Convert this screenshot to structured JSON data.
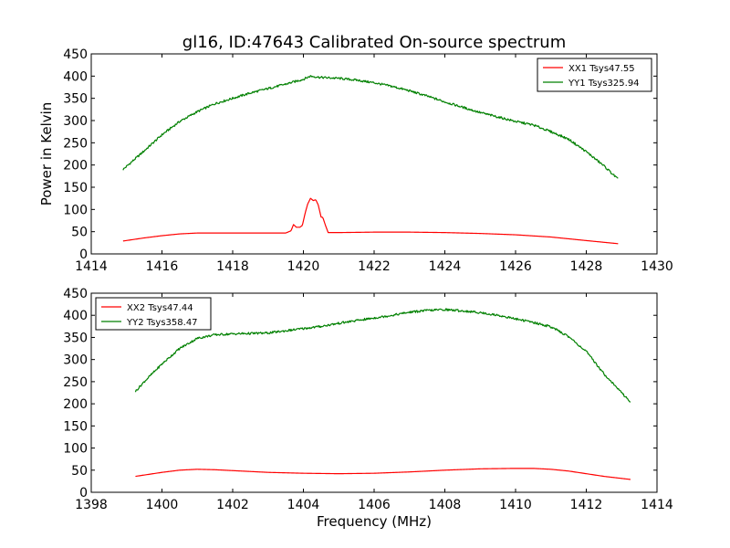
{
  "chart_data": [
    {
      "type": "line",
      "title": "gl16, ID:47643 Calibrated On-source spectrum",
      "xlabel": "",
      "ylabel": "Power in Kelvin",
      "xlim": [
        1414,
        1430
      ],
      "ylim": [
        0,
        450
      ],
      "xticks": [
        "1414",
        "1416",
        "1418",
        "1420",
        "1422",
        "1424",
        "1426",
        "1428",
        "1430"
      ],
      "yticks": [
        "0",
        "50",
        "100",
        "150",
        "200",
        "250",
        "300",
        "350",
        "400",
        "450"
      ],
      "legend_position": "top-right",
      "grid": false,
      "series": [
        {
          "name": "XX1 Tsys47.55",
          "color": "#ff0000",
          "x": [
            1414.9,
            1415.5,
            1416,
            1416.5,
            1417,
            1418,
            1419,
            1419.5,
            1419.65,
            1419.72,
            1419.8,
            1419.9,
            1419.97,
            1420.05,
            1420.12,
            1420.2,
            1420.28,
            1420.35,
            1420.42,
            1420.5,
            1420.55,
            1420.62,
            1420.7,
            1421,
            1422,
            1423,
            1424,
            1425,
            1426,
            1427,
            1428,
            1428.9
          ],
          "y": [
            29,
            36,
            41,
            45,
            47,
            47,
            47,
            47,
            52,
            66,
            60,
            60,
            64,
            92,
            112,
            125,
            120,
            122,
            110,
            83,
            82,
            65,
            48,
            48,
            49,
            49,
            48,
            46,
            43,
            38,
            30,
            23
          ]
        },
        {
          "name": "YY1 Tsys325.94",
          "color": "#008000",
          "x": [
            1414.9,
            1415.5,
            1416,
            1416.5,
            1417,
            1417.5,
            1418,
            1418.5,
            1419,
            1419.5,
            1420,
            1420.2,
            1420.5,
            1421,
            1421.5,
            1422,
            1422.5,
            1423,
            1423.5,
            1424,
            1424.5,
            1425,
            1425.5,
            1426,
            1426.5,
            1427,
            1427.5,
            1428,
            1428.5,
            1428.9
          ],
          "y": [
            190,
            232,
            268,
            298,
            320,
            338,
            350,
            362,
            372,
            382,
            393,
            400,
            397,
            395,
            391,
            385,
            377,
            367,
            355,
            342,
            330,
            318,
            308,
            298,
            290,
            275,
            258,
            230,
            198,
            168
          ]
        }
      ]
    },
    {
      "type": "line",
      "title": "",
      "xlabel": "Frequency (MHz)",
      "ylabel": "",
      "xlim": [
        1398,
        1414
      ],
      "ylim": [
        0,
        450
      ],
      "xticks": [
        "1398",
        "1400",
        "1402",
        "1404",
        "1406",
        "1408",
        "1410",
        "1412",
        "1414"
      ],
      "yticks": [
        "0",
        "50",
        "100",
        "150",
        "200",
        "250",
        "300",
        "350",
        "400",
        "450"
      ],
      "legend_position": "top-left",
      "grid": false,
      "series": [
        {
          "name": "XX2 Tsys47.44",
          "color": "#ff0000",
          "x": [
            1399.25,
            1400,
            1400.5,
            1401,
            1401.5,
            1402,
            1402.5,
            1403,
            1403.5,
            1404,
            1405,
            1406,
            1407,
            1408,
            1409,
            1410,
            1410.5,
            1411,
            1411.5,
            1412,
            1412.5,
            1413.25
          ],
          "y": [
            36,
            45,
            50,
            52,
            51,
            49,
            47,
            45,
            44,
            43,
            42,
            43,
            46,
            50,
            53,
            54,
            54,
            52,
            48,
            42,
            36,
            29
          ]
        },
        {
          "name": "YY2 Tsys358.47",
          "color": "#008000",
          "x": [
            1399.25,
            1399.5,
            1400,
            1400.5,
            1401,
            1401.5,
            1402,
            1402.5,
            1403,
            1403.5,
            1404,
            1404.5,
            1405,
            1405.5,
            1406,
            1406.5,
            1407,
            1407.5,
            1408,
            1408.5,
            1409,
            1409.5,
            1410,
            1410.5,
            1411,
            1411.5,
            1412,
            1412.5,
            1413,
            1413.25
          ],
          "y": [
            228,
            250,
            290,
            325,
            348,
            356,
            358,
            359,
            360,
            365,
            370,
            375,
            382,
            388,
            394,
            400,
            407,
            411,
            413,
            410,
            406,
            400,
            392,
            384,
            374,
            352,
            318,
            268,
            225,
            204
          ]
        }
      ]
    }
  ]
}
